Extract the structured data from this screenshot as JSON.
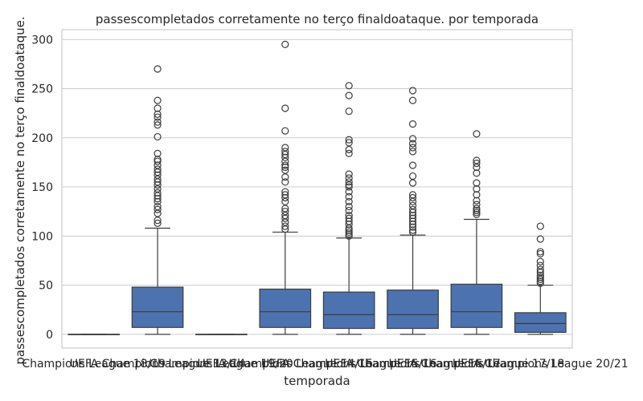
{
  "chart_data": {
    "type": "box",
    "title": "passescompletados corretamente no terço finaldoataque. por temporada",
    "xlabel": "temporada",
    "ylabel": "passescompletados corretamente no terço finaldoataque.",
    "ylim": [
      -14,
      310
    ],
    "yticks": [
      0,
      50,
      100,
      150,
      200,
      250,
      300
    ],
    "grid": true,
    "colors": {
      "box_fill": "#4c72b0",
      "line": "#3d3d3d",
      "grid": "#cccccc",
      "frame": "#cccccc"
    },
    "categories": [
      "Champions League 18/19",
      "UEFA Champions League 13/14",
      "Champions League 19/20",
      "UEFA Champions League 14/15",
      "UEFA Champions League 15/16",
      "UEFA Champions League 16/17",
      "UEFA Champions League 17/18",
      "UEFA Champions League 20/21"
    ],
    "boxes": [
      {
        "min": 0,
        "q1": 0,
        "median": 0,
        "q3": 0,
        "max": 0,
        "outliers": []
      },
      {
        "min": 0,
        "q1": 7,
        "median": 23,
        "q3": 48,
        "max": 108,
        "outliers": [
          113,
          116,
          123,
          127,
          130,
          135,
          138,
          141,
          144,
          148,
          152,
          155,
          158,
          162,
          165,
          168,
          172,
          176,
          178,
          184,
          201,
          213,
          216,
          221,
          224,
          230,
          238,
          270
        ]
      },
      {
        "min": 0,
        "q1": 0,
        "median": 0,
        "q3": 0,
        "max": 0,
        "outliers": []
      },
      {
        "min": 0,
        "q1": 7,
        "median": 23,
        "q3": 46,
        "max": 104,
        "outliers": [
          107,
          110,
          114,
          118,
          121,
          125,
          128,
          135,
          139,
          142,
          145,
          155,
          160,
          167,
          170,
          172,
          176,
          180,
          183,
          186,
          190,
          207,
          230,
          295
        ]
      },
      {
        "min": 0,
        "q1": 6,
        "median": 20,
        "q3": 43,
        "max": 98,
        "outliers": [
          100,
          102,
          104,
          106,
          108,
          112,
          115,
          118,
          121,
          126,
          130,
          135,
          140,
          145,
          150,
          152,
          155,
          159,
          163,
          184,
          188,
          195,
          198,
          227,
          243,
          253
        ]
      },
      {
        "min": 0,
        "q1": 6,
        "median": 20,
        "q3": 45,
        "max": 101,
        "outliers": [
          104,
          106,
          109,
          112,
          115,
          118,
          121,
          124,
          127,
          131,
          135,
          139,
          142,
          154,
          161,
          172,
          186,
          190,
          194,
          199,
          214,
          238,
          248
        ]
      },
      {
        "min": 0,
        "q1": 7,
        "median": 23,
        "q3": 51,
        "max": 117,
        "outliers": [
          122,
          124,
          126,
          128,
          132,
          136,
          142,
          148,
          154,
          164,
          170,
          174,
          177,
          204
        ]
      },
      {
        "min": 0,
        "q1": 2,
        "median": 11,
        "q3": 22,
        "max": 50,
        "outliers": [
          52,
          54,
          56,
          58,
          60,
          63,
          66,
          70,
          74,
          82,
          84,
          97,
          110
        ]
      }
    ]
  }
}
